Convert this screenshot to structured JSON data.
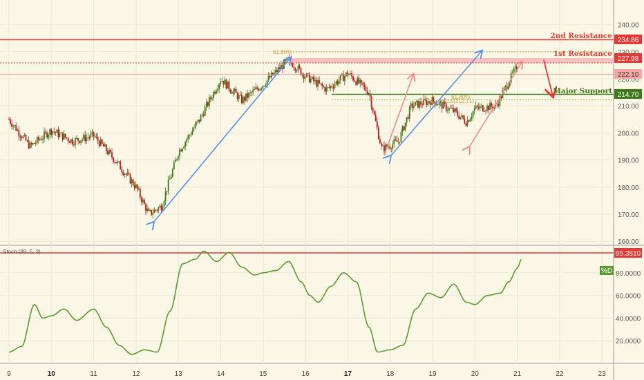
{
  "levels": {
    "second_resistance_label": "2nd Resistance",
    "first_resistance_label": "1st Resistance",
    "major_support_label": "Major Support",
    "fib_upper_label": "61.80%",
    "fib_lower_label": "61.80%",
    "fib_50_label": "0.5(212.71)"
  },
  "badges": {
    "second_resistance": "234.86",
    "first_resistance": "227.98",
    "last_price": "222.10",
    "major_support": "214.70",
    "stoch_level": "95.3810",
    "stoch_d": "%D"
  },
  "stoch": {
    "title": "Stoch (89, 5, 3)"
  },
  "colors": {
    "background": "#fbf7e6",
    "resistance": "#e53935",
    "support": "#3d7a1c",
    "stoch_line": "#5b9a2e",
    "arrow_blue": "#5b8ee6",
    "arrow_pink": "#ee8a8a",
    "candle_up": "#3d7a1c",
    "candle_down": "#b71c1c"
  },
  "chart_data": [
    {
      "type": "candlestick",
      "title": "",
      "ylim": [
        160,
        245
      ],
      "y_ticks": [
        "160.00",
        "170.00",
        "180.00",
        "190.00",
        "200.00",
        "210.00",
        "220.00",
        "230.00",
        "240.00"
      ],
      "x_ticks": [
        "9",
        "10",
        "11",
        "12",
        "13",
        "14",
        "15",
        "16",
        "17",
        "18",
        "19",
        "20",
        "21",
        "22",
        "23"
      ],
      "x_ticks_bold": [
        "10",
        "17"
      ],
      "series": [
        {
          "x": [
            9.0,
            9.5,
            10.0,
            10.5,
            11.0,
            11.5,
            12.0,
            12.3,
            12.6,
            13.0,
            13.5,
            14.0,
            14.5,
            15.0,
            15.6,
            16.0,
            16.5,
            17.0,
            17.5,
            17.8,
            18.2,
            18.5,
            19.0,
            19.5,
            19.8,
            20.0,
            20.5,
            20.9,
            21.0
          ],
          "close": [
            205,
            195,
            201,
            197,
            199,
            190,
            180,
            170,
            173,
            193,
            205,
            220,
            212,
            218,
            227,
            221,
            216,
            222,
            215,
            194,
            197,
            210,
            212,
            208,
            204,
            209,
            210,
            222,
            224
          ]
        }
      ],
      "levels": {
        "second_resistance": 234.86,
        "first_resistance": 227.98,
        "last_price": 222.1,
        "major_support": 214.7,
        "fib_50": 212.71
      }
    },
    {
      "type": "line",
      "title": "Stoch (89, 5, 3)",
      "ylim": [
        0,
        100
      ],
      "y_ticks": [
        "20.0000",
        "40.0000",
        "60.0000",
        "80.0000"
      ],
      "series": [
        {
          "name": "%D",
          "x": [
            9.0,
            9.3,
            9.6,
            9.8,
            10.0,
            10.3,
            10.6,
            11.0,
            11.3,
            11.6,
            11.9,
            12.2,
            12.5,
            12.8,
            13.1,
            13.4,
            13.6,
            13.9,
            14.2,
            14.5,
            14.8,
            15.0,
            15.3,
            15.6,
            15.9,
            16.1,
            16.3,
            16.6,
            16.9,
            17.2,
            17.5,
            17.7,
            18.0,
            18.3,
            18.6,
            18.9,
            19.2,
            19.5,
            19.8,
            20.0,
            20.3,
            20.6,
            20.8,
            21.0,
            21.1
          ],
          "values": [
            10,
            15,
            52,
            40,
            42,
            48,
            38,
            48,
            32,
            16,
            8,
            12,
            10,
            46,
            88,
            92,
            99,
            90,
            98,
            85,
            78,
            80,
            82,
            90,
            72,
            60,
            54,
            68,
            80,
            72,
            32,
            10,
            12,
            16,
            48,
            62,
            58,
            70,
            54,
            52,
            60,
            62,
            72,
            84,
            92
          ]
        }
      ],
      "level": 95.381
    }
  ]
}
